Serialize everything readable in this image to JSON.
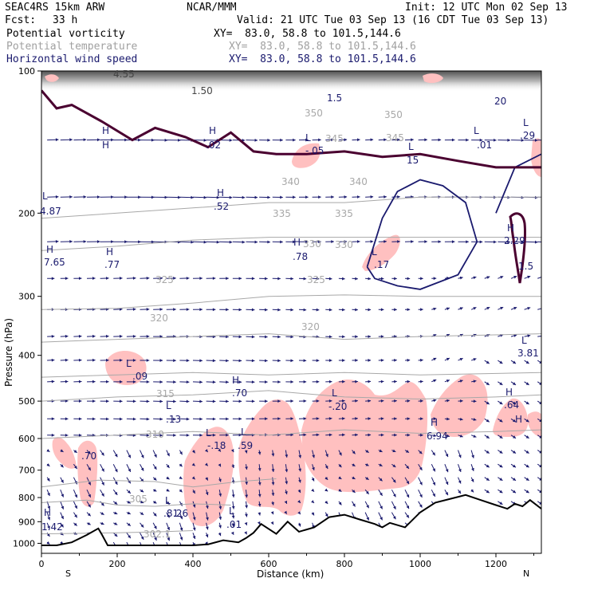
{
  "header": {
    "model": "SEAC4RS 15km ARW",
    "org": "NCAR/MMM",
    "init": "Init: 12 UTC Mon 02 Sep 13",
    "fcst_label": "Fcst:",
    "fcst_value": "33 h",
    "valid": "Valid: 21 UTC Tue 03 Sep 13 (16 CDT Tue 03 Sep 13)",
    "fields": [
      {
        "name": "Potential vorticity",
        "xy": "XY=  83.0, 58.8 to 101.5,144.6",
        "color": "#000000"
      },
      {
        "name": "Potential temperature",
        "xy": "XY=  83.0, 58.8 to 101.5,144.6",
        "color": "#b0b0b0"
      },
      {
        "name": "Horizontal wind speed",
        "xy": "XY=  83.0, 58.8 to 101.5,144.6",
        "color": "#1a1a6e"
      }
    ]
  },
  "colors": {
    "background": "#ffffff",
    "pv_shading": "#ffc0c0",
    "theta_contour": "#a8a8a8",
    "wind_contour": "#1a1a6e",
    "pv_contour": "#4a0030",
    "terrain_line": "#000000",
    "wind_vectors": "#1a1a6e"
  },
  "chart_data": {
    "type": "cross-section",
    "xlabel": "Distance (km)",
    "ylabel": "Pressure (hPa)",
    "xlim": [
      0,
      1320
    ],
    "ylim": [
      1050,
      100
    ],
    "y_scale": "log",
    "x_ticks": [
      "0",
      "200",
      "400",
      "600",
      "800",
      "1000",
      "1200"
    ],
    "y_ticks": [
      "100",
      "200",
      "300",
      "400",
      "500",
      "600",
      "700",
      "800",
      "900",
      "1000"
    ],
    "x_endpoints": {
      "left": "S",
      "right": "N"
    },
    "terrain_surface_pressure": {
      "x": [
        0,
        40,
        80,
        120,
        150,
        160,
        175,
        200,
        250,
        300,
        350,
        400,
        440,
        480,
        520,
        540,
        560,
        580,
        620,
        650,
        680,
        720,
        760,
        800,
        840,
        880,
        900,
        920,
        960,
        1000,
        1040,
        1080,
        1120,
        1160,
        1200,
        1230,
        1250,
        1270,
        1290,
        1320
      ],
      "p": [
        1010,
        1010,
        995,
        960,
        930,
        960,
        1010,
        1010,
        1010,
        1010,
        1010,
        1010,
        1005,
        985,
        995,
        975,
        950,
        910,
        955,
        900,
        945,
        925,
        880,
        870,
        890,
        910,
        925,
        905,
        925,
        860,
        820,
        805,
        790,
        810,
        830,
        845,
        825,
        835,
        810,
        845
      ]
    },
    "theta_contours": [
      {
        "label": "305",
        "x": [
          0,
          200,
          320,
          400
        ],
        "p": [
          955,
          950,
          945,
          940
        ]
      },
      {
        "label": "310",
        "x": [
          0,
          120,
          200,
          300,
          400,
          500
        ],
        "p": [
          820,
          810,
          830,
          835,
          825,
          830
        ]
      },
      {
        "label": "315",
        "x": [
          0,
          150,
          300,
          400,
          520,
          620
        ],
        "p": [
          760,
          735,
          740,
          760,
          740,
          730
        ]
      },
      {
        "label": "320",
        "x": [
          0,
          200,
          400,
          600,
          800,
          1000,
          1200,
          1320
        ],
        "p": [
          600,
          590,
          580,
          590,
          575,
          585,
          580,
          575
        ]
      },
      {
        "label": "325",
        "x": [
          0,
          200,
          400,
          600,
          800,
          1000,
          1200,
          1320
        ],
        "p": [
          500,
          490,
          485,
          475,
          490,
          495,
          490,
          485
        ]
      },
      {
        "label": "330",
        "x": [
          0,
          200,
          400,
          600,
          800,
          1000,
          1320
        ],
        "p": [
          445,
          440,
          435,
          440,
          435,
          440,
          435
        ]
      },
      {
        "label": "335",
        "x": [
          0,
          200,
          400,
          600,
          800,
          1000,
          1320
        ],
        "p": [
          375,
          370,
          365,
          360,
          370,
          365,
          360
        ]
      },
      {
        "label": "340",
        "x": [
          0,
          200,
          400,
          600,
          800,
          1000,
          1320
        ],
        "p": [
          320,
          318,
          310,
          300,
          298,
          300,
          300
        ]
      },
      {
        "label": "345",
        "x": [
          0,
          200,
          400,
          600,
          800,
          1000,
          1320
        ],
        "p": [
          240,
          235,
          228,
          225,
          225,
          225,
          225
        ]
      },
      {
        "label": "350",
        "x": [
          0,
          200,
          400,
          600,
          800,
          1000,
          1320
        ],
        "p": [
          205,
          200,
          195,
          190,
          190,
          185,
          185
        ]
      }
    ],
    "pv_contour_1_5": {
      "label": "1.50",
      "x": [
        0,
        40,
        80,
        160,
        240,
        300,
        380,
        440,
        500,
        560,
        620,
        700,
        800,
        900,
        1000,
        1100,
        1200,
        1320
      ],
      "p": [
        110,
        120,
        118,
        128,
        140,
        132,
        138,
        145,
        135,
        148,
        150,
        150,
        148,
        152,
        150,
        155,
        160,
        160
      ]
    },
    "wind_contours": [
      {
        "label": "15",
        "x": [
          860,
          900,
          940,
          1000,
          1060,
          1120,
          1150,
          1100,
          1000,
          940,
          880,
          860
        ],
        "p": [
          260,
          205,
          180,
          170,
          175,
          190,
          230,
          270,
          290,
          285,
          275,
          260
        ]
      },
      {
        "label": "20",
        "x": [
          1200,
          1250,
          1320
        ],
        "p": [
          200,
          160,
          150
        ]
      }
    ],
    "labels": {
      "pv": [
        "4.87",
        ".52",
        "7.65",
        ".77",
        ".78",
        ".17",
        "2.29",
        "1.5",
        "3.81",
        ".09",
        ".70",
        ".13",
        "-.18",
        ".59",
        "-.20",
        "6.94",
        ".64",
        ".70",
        "1.42",
        ".81",
        ".26",
        ".01",
        ".02",
        "-.05",
        ".01",
        "4.55",
        "1.50",
        ".29"
      ],
      "hl": [
        "L",
        "H",
        "L",
        "H",
        "H",
        "L",
        "L",
        "H",
        "H",
        "L",
        "L",
        "L",
        "L",
        "L",
        "H",
        "L",
        "H",
        "H",
        "H",
        "H",
        "H",
        "L",
        "H",
        "L",
        "L",
        "L",
        "L"
      ],
      "theta": [
        "350",
        "345",
        "340",
        "340",
        "335",
        "335",
        "330",
        "330",
        "325",
        "325",
        "320",
        "320",
        "315",
        "310",
        "305",
        "302.1"
      ],
      "wind": [
        "15",
        "20",
        "1.5",
        "1.50"
      ]
    },
    "grid": false
  }
}
